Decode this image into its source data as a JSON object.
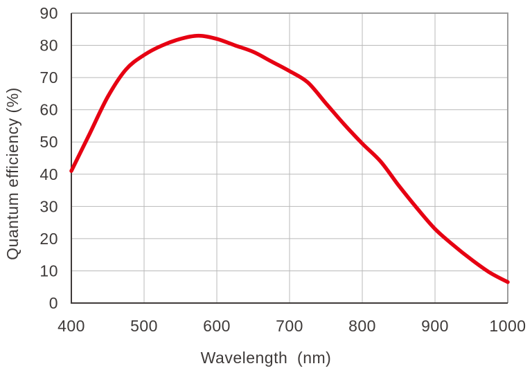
{
  "figure": {
    "background": "#ffffff"
  },
  "chart_data": {
    "type": "line",
    "title": "",
    "xlabel": "Wavelength  (nm)",
    "ylabel": "Quantum efficiency (%)",
    "xlim": [
      400,
      1000
    ],
    "ylim": [
      0,
      90
    ],
    "xticks": [
      400,
      500,
      600,
      700,
      800,
      900,
      1000
    ],
    "yticks": [
      0,
      10,
      20,
      30,
      40,
      50,
      60,
      70,
      80,
      90
    ],
    "grid": true,
    "legend": "none",
    "series": [
      {
        "name": "quantum-efficiency-curve",
        "color": "#e60012",
        "x": [
          400,
          425,
          450,
          475,
          500,
          525,
          550,
          575,
          600,
          625,
          650,
          675,
          700,
          725,
          750,
          775,
          800,
          825,
          850,
          875,
          900,
          925,
          950,
          975,
          1000
        ],
        "y": [
          41,
          52.5,
          64,
          72.5,
          77,
          80,
          82,
          83,
          82,
          80,
          78,
          75,
          72,
          68.5,
          62,
          55.5,
          49.5,
          44,
          36.5,
          29.5,
          23,
          18,
          13.5,
          9.5,
          6.5
        ]
      }
    ]
  },
  "colors": {
    "curve": "#e60012",
    "grid": "#b9b9b9",
    "frame": "#9c9c9c",
    "axis": "#3e3a39",
    "text": "#3e3a39"
  }
}
